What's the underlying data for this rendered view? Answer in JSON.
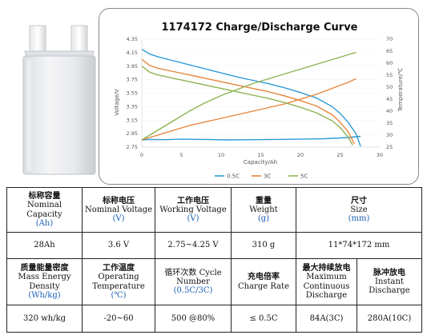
{
  "chart_data": {
    "type": "line",
    "title": "1174172  Charge/Discharge Curve",
    "xlabel": "Capacity/Ah",
    "ylabel_left": "Voltage/V",
    "ylabel_right": "Temperature/℃",
    "xlim": [
      0,
      30
    ],
    "ylim_left": [
      2.75,
      4.35
    ],
    "ylim_right": [
      25,
      70
    ],
    "x_ticks": [
      "0",
      "5",
      "10",
      "15",
      "20",
      "25",
      "30"
    ],
    "y_ticks_left": [
      "2.75",
      "2.95",
      "3.15",
      "3.35",
      "3.55",
      "3.75",
      "3.95",
      "4.15",
      "4.35"
    ],
    "y_ticks_right": [
      "25",
      "30",
      "35",
      "40",
      "45",
      "50",
      "55",
      "60",
      "65",
      "70"
    ],
    "legend_position": "bottom",
    "series": [
      {
        "name": "0.5C",
        "color": "#2f9bd6",
        "axis": "left",
        "x": [
          0,
          1,
          2,
          4,
          6,
          8,
          10,
          12,
          14,
          16,
          18,
          20,
          22,
          24,
          25,
          26,
          27,
          27.6
        ],
        "y": [
          4.2,
          4.13,
          4.09,
          4.03,
          3.97,
          3.91,
          3.85,
          3.79,
          3.74,
          3.69,
          3.63,
          3.56,
          3.48,
          3.35,
          3.25,
          3.12,
          2.95,
          2.76
        ]
      },
      {
        "name": "0.5C",
        "color": "#2f9bd6",
        "axis": "right",
        "x": [
          0,
          1,
          3,
          5,
          8,
          11,
          14,
          17,
          20,
          23,
          26,
          27.6
        ],
        "y": [
          28,
          28.2,
          28.1,
          28.3,
          28.2,
          28,
          28.1,
          28.2,
          28.3,
          28.5,
          29,
          29.5
        ]
      },
      {
        "name": "3C",
        "color": "#e8853a",
        "axis": "left",
        "x": [
          0,
          1,
          2,
          4,
          6,
          8,
          10,
          12,
          14,
          16,
          18,
          20,
          22,
          24,
          25,
          26,
          26.8
        ],
        "y": [
          4.05,
          3.96,
          3.92,
          3.87,
          3.82,
          3.77,
          3.72,
          3.67,
          3.62,
          3.57,
          3.51,
          3.44,
          3.36,
          3.23,
          3.12,
          2.98,
          2.8
        ]
      },
      {
        "name": "3C",
        "color": "#e8853a",
        "axis": "right",
        "x": [
          0,
          2,
          4,
          6,
          8,
          10,
          12,
          14,
          16,
          18,
          20,
          22,
          24,
          26,
          27
        ],
        "y": [
          28,
          30,
          32,
          34,
          35.5,
          37,
          38.5,
          40,
          41.5,
          43,
          45,
          47,
          49.5,
          52,
          53.5
        ]
      },
      {
        "name": "5C",
        "color": "#8db352",
        "axis": "left",
        "x": [
          0,
          1,
          2,
          4,
          6,
          8,
          10,
          12,
          14,
          16,
          18,
          20,
          22,
          24,
          25,
          26,
          26.6
        ],
        "y": [
          3.95,
          3.86,
          3.82,
          3.77,
          3.72,
          3.67,
          3.62,
          3.57,
          3.52,
          3.47,
          3.41,
          3.34,
          3.26,
          3.14,
          3.04,
          2.9,
          2.78
        ]
      },
      {
        "name": "5C",
        "color": "#8db352",
        "axis": "right",
        "x": [
          0,
          2,
          4,
          6,
          8,
          10,
          12,
          14,
          16,
          18,
          20,
          22,
          24,
          26,
          27
        ],
        "y": [
          28,
          32,
          36,
          40,
          43.5,
          46.5,
          49,
          51.5,
          53.5,
          55.5,
          57.5,
          59.5,
          61.5,
          63.5,
          64.5
        ]
      }
    ]
  },
  "specs": {
    "row1": [
      {
        "cn": "标称容量",
        "en": "Nominal Capacity",
        "unit": "(Ah)"
      },
      {
        "cn": "标称电压",
        "en": "Nominal Voltage",
        "unit": "(V)"
      },
      {
        "cn": "工作电压",
        "en": "Working Voltage",
        "unit": "(V)"
      },
      {
        "cn": "重量",
        "en": "Weight",
        "unit": "(g)"
      },
      {
        "cn": "尺寸",
        "en": "Size",
        "unit": "(mm)"
      }
    ],
    "row2": [
      "28Ah",
      "3.6 V",
      "2.75~4.25 V",
      "310 g",
      "11*74*172 mm"
    ],
    "row3": [
      {
        "cn": "质量能量密度",
        "en": "Mass Energy Density",
        "unit": "(Wh/kg)"
      },
      {
        "cn": "工作温度",
        "en": "Operating Temperature",
        "unit": "(℃)"
      },
      {
        "cn": "",
        "en": "循环次数 Cycle Number",
        "unit": "(0.5C/3C)"
      },
      {
        "cn": "充电倍率",
        "en": "Charge Rate",
        "unit": ""
      },
      {
        "cn": "最大持续放电",
        "en": "Maximum Continuous Discharge",
        "unit": ""
      },
      {
        "cn": "脉冲放电",
        "en": "Instant Discharge",
        "unit": ""
      }
    ],
    "row4": [
      "320 wh/kg",
      "-20~60",
      "500 @80%",
      "≤ 0.5C",
      "84A(3C)",
      "280A(10C)"
    ]
  }
}
